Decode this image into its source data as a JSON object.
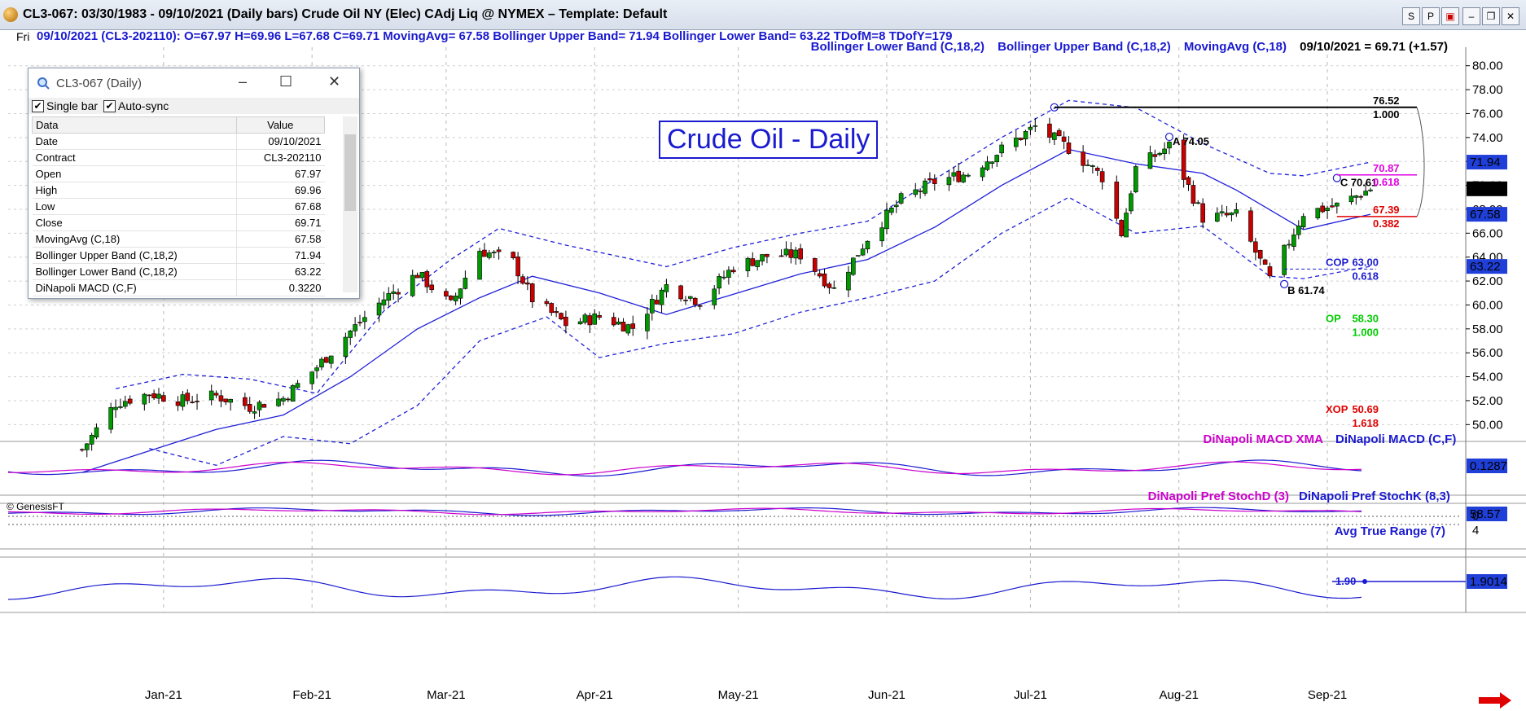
{
  "window": {
    "title": "CL3-067:  03/30/1983 - 09/10/2021  (Daily bars)   Crude Oil NY (Elec) CAdj Liq @ NYMEX  –  Template: Default",
    "buttons": [
      "S",
      "P"
    ]
  },
  "info_bar": {
    "day": "Fri",
    "text": "09/10/2021 (CL3-202110):  O=67.97  H=69.96  L=67.68  C=69.71  MovingAvg= 67.58  Bollinger Upper Band= 71.94  Bollinger Lower Band= 63.22  TDofM=8  TDofY=179"
  },
  "legend": {
    "lower": "Bollinger Lower Band (C,18,2)",
    "upper": "Bollinger Upper Band (C,18,2)",
    "ma": "MovingAvg (C,18)",
    "last": "09/10/2021 = 69.71 (+1.57)"
  },
  "chart_title": "Crude Oil - Daily",
  "copyright": "© GenesisFT",
  "data_window": {
    "title": "CL3-067 (Daily)",
    "single_bar": "Single bar",
    "auto_sync": "Auto-sync",
    "col_data": "Data",
    "col_value": "Value",
    "rows": [
      {
        "label": "Date",
        "value": "09/10/2021"
      },
      {
        "label": "Contract",
        "value": "CL3-202110"
      },
      {
        "label": "Open",
        "value": "67.97"
      },
      {
        "label": "High",
        "value": "69.96"
      },
      {
        "label": "Low",
        "value": "67.68"
      },
      {
        "label": "Close",
        "value": "69.71"
      },
      {
        "label": "MovingAvg (C,18)",
        "value": "67.58"
      },
      {
        "label": "Bollinger Upper Band (C,18,2)",
        "value": "71.94"
      },
      {
        "label": "Bollinger Lower Band (C,18,2)",
        "value": "63.22"
      },
      {
        "label": "DiNapoli MACD (C,F)",
        "value": "0.3220"
      }
    ]
  },
  "colors": {
    "bar_up": "#009900",
    "bar_down": "#c80000",
    "bands": "#2020d8",
    "macd_signal": "#cc00cc",
    "axis_tag_bg": "#1f3fd8"
  },
  "chart_data": {
    "type": "candlestick",
    "x_ticks": [
      "Jan-21",
      "Feb-21",
      "Mar-21",
      "Apr-21",
      "May-21",
      "Jun-21",
      "Jul-21",
      "Aug-21",
      "Sep-21"
    ],
    "x_range_days": [
      "2020-12-14",
      "2021-09-10"
    ],
    "y_ticks": [
      50,
      52,
      54,
      56,
      58,
      60,
      62,
      64,
      66,
      68,
      70,
      72,
      74,
      76,
      78,
      80
    ],
    "ylim": [
      49,
      81
    ],
    "closes_weekly": [
      {
        "date": "2020-12-15",
        "close": 47.9
      },
      {
        "date": "2020-12-22",
        "close": 51.8
      },
      {
        "date": "2020-12-29",
        "close": 52.6
      },
      {
        "date": "2021-01-05",
        "close": 52.0
      },
      {
        "date": "2021-01-12",
        "close": 52.4
      },
      {
        "date": "2021-01-19",
        "close": 51.5
      },
      {
        "date": "2021-01-26",
        "close": 52.2
      },
      {
        "date": "2021-02-02",
        "close": 54.8
      },
      {
        "date": "2021-02-09",
        "close": 57.8
      },
      {
        "date": "2021-02-16",
        "close": 60.5
      },
      {
        "date": "2021-02-23",
        "close": 62.6
      },
      {
        "date": "2021-03-02",
        "close": 60.0
      },
      {
        "date": "2021-03-08",
        "close": 64.6
      },
      {
        "date": "2021-03-15",
        "close": 63.6
      },
      {
        "date": "2021-03-19",
        "close": 60.5
      },
      {
        "date": "2021-03-26",
        "close": 58.4
      },
      {
        "date": "2021-04-02",
        "close": 59.0
      },
      {
        "date": "2021-04-09",
        "close": 58.1
      },
      {
        "date": "2021-04-16",
        "close": 61.6
      },
      {
        "date": "2021-04-23",
        "close": 60.3
      },
      {
        "date": "2021-04-30",
        "close": 63.2
      },
      {
        "date": "2021-05-07",
        "close": 64.1
      },
      {
        "date": "2021-05-14",
        "close": 64.2
      },
      {
        "date": "2021-05-21",
        "close": 61.3
      },
      {
        "date": "2021-05-28",
        "close": 65.6
      },
      {
        "date": "2021-06-04",
        "close": 68.8
      },
      {
        "date": "2021-06-11",
        "close": 70.3
      },
      {
        "date": "2021-06-18",
        "close": 71.0
      },
      {
        "date": "2021-06-25",
        "close": 73.0
      },
      {
        "date": "2021-07-02",
        "close": 74.9
      },
      {
        "date": "2021-07-09",
        "close": 73.1
      },
      {
        "date": "2021-07-16",
        "close": 70.7
      },
      {
        "date": "2021-07-20",
        "close": 66.0
      },
      {
        "date": "2021-07-23",
        "close": 71.4
      },
      {
        "date": "2021-07-30",
        "close": 73.3
      },
      {
        "date": "2021-08-06",
        "close": 67.3
      },
      {
        "date": "2021-08-13",
        "close": 67.5
      },
      {
        "date": "2021-08-20",
        "close": 62.1
      },
      {
        "date": "2021-08-27",
        "close": 67.7
      },
      {
        "date": "2021-09-03",
        "close": 68.3
      },
      {
        "date": "2021-09-10",
        "close": 69.71
      }
    ],
    "ma_18": [
      {
        "date": "2020-12-15",
        "v": 46.0
      },
      {
        "date": "2021-01-12",
        "v": 49.6
      },
      {
        "date": "2021-01-26",
        "v": 50.8
      },
      {
        "date": "2021-02-09",
        "v": 54.0
      },
      {
        "date": "2021-02-23",
        "v": 58.0
      },
      {
        "date": "2021-03-08",
        "v": 60.6
      },
      {
        "date": "2021-03-19",
        "v": 62.4
      },
      {
        "date": "2021-04-02",
        "v": 61.0
      },
      {
        "date": "2021-04-16",
        "v": 59.2
      },
      {
        "date": "2021-04-30",
        "v": 60.9
      },
      {
        "date": "2021-05-14",
        "v": 62.6
      },
      {
        "date": "2021-05-28",
        "v": 63.8
      },
      {
        "date": "2021-06-11",
        "v": 66.5
      },
      {
        "date": "2021-06-25",
        "v": 70.0
      },
      {
        "date": "2021-07-09",
        "v": 73.0
      },
      {
        "date": "2021-07-23",
        "v": 71.8
      },
      {
        "date": "2021-08-06",
        "v": 71.0
      },
      {
        "date": "2021-08-13",
        "v": 69.6
      },
      {
        "date": "2021-08-27",
        "v": 66.3
      },
      {
        "date": "2021-09-10",
        "v": 67.58
      }
    ],
    "bb_upper": [
      {
        "date": "2020-12-22",
        "v": 53.0
      },
      {
        "date": "2021-01-05",
        "v": 54.2
      },
      {
        "date": "2021-01-19",
        "v": 53.8
      },
      {
        "date": "2021-02-02",
        "v": 52.6
      },
      {
        "date": "2021-02-16",
        "v": 59.5
      },
      {
        "date": "2021-03-02",
        "v": 63.8
      },
      {
        "date": "2021-03-12",
        "v": 66.4
      },
      {
        "date": "2021-03-26",
        "v": 65.0
      },
      {
        "date": "2021-04-16",
        "v": 63.2
      },
      {
        "date": "2021-04-30",
        "v": 64.8
      },
      {
        "date": "2021-05-14",
        "v": 66.0
      },
      {
        "date": "2021-05-28",
        "v": 67.0
      },
      {
        "date": "2021-06-11",
        "v": 70.5
      },
      {
        "date": "2021-06-25",
        "v": 74.0
      },
      {
        "date": "2021-07-09",
        "v": 77.1
      },
      {
        "date": "2021-07-23",
        "v": 76.5
      },
      {
        "date": "2021-08-06",
        "v": 73.5
      },
      {
        "date": "2021-08-20",
        "v": 71.0
      },
      {
        "date": "2021-08-27",
        "v": 70.8
      },
      {
        "date": "2021-09-10",
        "v": 71.94
      }
    ],
    "bb_lower": [
      {
        "date": "2020-12-29",
        "v": 48.0
      },
      {
        "date": "2021-01-12",
        "v": 46.6
      },
      {
        "date": "2021-01-26",
        "v": 49.0
      },
      {
        "date": "2021-02-09",
        "v": 48.4
      },
      {
        "date": "2021-02-23",
        "v": 51.6
      },
      {
        "date": "2021-03-08",
        "v": 57.0
      },
      {
        "date": "2021-03-22",
        "v": 59.0
      },
      {
        "date": "2021-04-02",
        "v": 55.6
      },
      {
        "date": "2021-04-16",
        "v": 56.8
      },
      {
        "date": "2021-04-30",
        "v": 57.6
      },
      {
        "date": "2021-05-14",
        "v": 59.4
      },
      {
        "date": "2021-05-28",
        "v": 60.6
      },
      {
        "date": "2021-06-11",
        "v": 62.0
      },
      {
        "date": "2021-06-25",
        "v": 66.0
      },
      {
        "date": "2021-07-09",
        "v": 69.0
      },
      {
        "date": "2021-07-23",
        "v": 66.0
      },
      {
        "date": "2021-08-06",
        "v": 66.6
      },
      {
        "date": "2021-08-20",
        "v": 62.4
      },
      {
        "date": "2021-08-27",
        "v": 62.2
      },
      {
        "date": "2021-09-10",
        "v": 63.22
      }
    ],
    "axis_tags": [
      {
        "value": 71.94,
        "label": "71.94",
        "bg": "#1f3fd8"
      },
      {
        "value": 69.71,
        "label": "69.71",
        "bg": "#000000"
      },
      {
        "value": 67.58,
        "label": "67.58",
        "bg": "#1f3fd8"
      },
      {
        "value": 63.22,
        "label": "63.22",
        "bg": "#1f3fd8"
      }
    ],
    "swing_points": [
      {
        "date": "2021-07-06",
        "value": 76.52,
        "label": ""
      },
      {
        "date": "2021-07-30",
        "value": 74.05,
        "label": "A 74.05"
      },
      {
        "date": "2021-08-23",
        "value": 61.74,
        "label": "B 61.74"
      },
      {
        "date": "2021-09-03",
        "value": 70.61,
        "label": "C 70.61"
      }
    ],
    "fib_levels": [
      {
        "price": "76.52",
        "ratio": "1.000",
        "value": 76.52,
        "color": "#000000"
      },
      {
        "price": "70.87",
        "ratio": "0.618",
        "value": 70.87,
        "color": "#e000e0"
      },
      {
        "price": "67.39",
        "ratio": "0.382",
        "value": 67.39,
        "color": "#e00000"
      }
    ],
    "projections": [
      {
        "name": "COP",
        "price": "63.00",
        "ratio": "0.618",
        "value": 63.0,
        "color": "#1a1ad0"
      },
      {
        "name": "OP",
        "price": "58.30",
        "ratio": "1.000",
        "value": 58.3,
        "color": "#00cc00"
      },
      {
        "name": "XOP",
        "price": "50.69",
        "ratio": "1.618",
        "value": 50.69,
        "color": "#e00000"
      }
    ],
    "panes": [
      {
        "id": "macd",
        "series": [
          "DiNapoli MACD XMA",
          "DiNapoli MACD (C,F)"
        ],
        "last": "0.1287"
      },
      {
        "id": "stoch",
        "series": [
          "DiNapoli Pref StochD (3)",
          "DiNapoli Pref StochK (8,3)"
        ],
        "last": "58.57",
        "scale": [
          "0"
        ]
      },
      {
        "id": "atr",
        "series": [
          "Avg True Range (7)"
        ],
        "last": "1.9014",
        "marker": "1.90",
        "scale": [
          "4"
        ]
      }
    ]
  }
}
